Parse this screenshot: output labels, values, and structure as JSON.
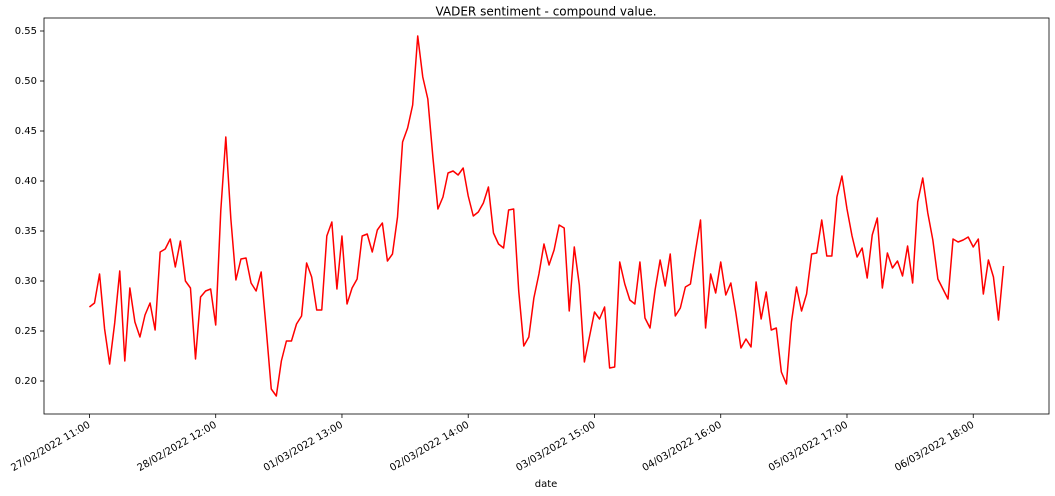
{
  "chart_data": {
    "type": "line",
    "title": "VADER sentiment - compound value.",
    "x_label": "date",
    "x": [
      "27/02/2022 11:00",
      "27/02/2022 12:00",
      "27/02/2022 13:00",
      "27/02/2022 14:00",
      "27/02/2022 15:00",
      "27/02/2022 16:00",
      "27/02/2022 17:00",
      "27/02/2022 18:00",
      "27/02/2022 19:00",
      "27/02/2022 20:00",
      "27/02/2022 21:00",
      "27/02/2022 22:00",
      "27/02/2022 23:00",
      "28/02/2022 00:00",
      "28/02/2022 01:00",
      "28/02/2022 02:00",
      "28/02/2022 03:00",
      "28/02/2022 04:00",
      "28/02/2022 05:00",
      "28/02/2022 06:00",
      "28/02/2022 07:00",
      "28/02/2022 08:00",
      "28/02/2022 09:00",
      "28/02/2022 10:00",
      "28/02/2022 11:00",
      "28/02/2022 12:00",
      "28/02/2022 13:00",
      "28/02/2022 14:00",
      "28/02/2022 15:00",
      "28/02/2022 16:00",
      "28/02/2022 17:00",
      "28/02/2022 18:00",
      "28/02/2022 19:00",
      "28/02/2022 20:00",
      "28/02/2022 21:00",
      "28/02/2022 22:00",
      "28/02/2022 23:00",
      "01/03/2022 00:00",
      "01/03/2022 01:00",
      "01/03/2022 02:00",
      "01/03/2022 03:00",
      "01/03/2022 04:00",
      "01/03/2022 05:00",
      "01/03/2022 06:00",
      "01/03/2022 07:00",
      "01/03/2022 08:00",
      "01/03/2022 09:00",
      "01/03/2022 10:00",
      "01/03/2022 11:00",
      "01/03/2022 12:00",
      "01/03/2022 13:00",
      "01/03/2022 14:00",
      "01/03/2022 15:00",
      "01/03/2022 16:00",
      "01/03/2022 17:00",
      "01/03/2022 18:00",
      "01/03/2022 19:00",
      "01/03/2022 20:00",
      "01/03/2022 21:00",
      "01/03/2022 22:00",
      "01/03/2022 23:00",
      "02/03/2022 00:00",
      "02/03/2022 01:00",
      "02/03/2022 02:00",
      "02/03/2022 03:00",
      "02/03/2022 04:00",
      "02/03/2022 05:00",
      "02/03/2022 06:00",
      "02/03/2022 07:00",
      "02/03/2022 08:00",
      "02/03/2022 09:00",
      "02/03/2022 10:00",
      "02/03/2022 11:00",
      "02/03/2022 12:00",
      "02/03/2022 13:00",
      "02/03/2022 14:00",
      "02/03/2022 15:00",
      "02/03/2022 16:00",
      "02/03/2022 17:00",
      "02/03/2022 18:00",
      "02/03/2022 19:00",
      "02/03/2022 20:00",
      "02/03/2022 21:00",
      "02/03/2022 22:00",
      "02/03/2022 23:00",
      "03/03/2022 00:00",
      "03/03/2022 01:00",
      "03/03/2022 02:00",
      "03/03/2022 03:00",
      "03/03/2022 04:00",
      "03/03/2022 05:00",
      "03/03/2022 06:00",
      "03/03/2022 07:00",
      "03/03/2022 08:00",
      "03/03/2022 09:00",
      "03/03/2022 10:00",
      "03/03/2022 11:00",
      "03/03/2022 12:00",
      "03/03/2022 13:00",
      "03/03/2022 14:00",
      "03/03/2022 15:00",
      "03/03/2022 16:00",
      "03/03/2022 17:00",
      "03/03/2022 18:00",
      "03/03/2022 19:00",
      "03/03/2022 20:00",
      "03/03/2022 21:00",
      "03/03/2022 22:00",
      "03/03/2022 23:00",
      "04/03/2022 00:00",
      "04/03/2022 01:00",
      "04/03/2022 02:00",
      "04/03/2022 03:00",
      "04/03/2022 04:00",
      "04/03/2022 05:00",
      "04/03/2022 06:00",
      "04/03/2022 07:00",
      "04/03/2022 08:00",
      "04/03/2022 09:00",
      "04/03/2022 10:00",
      "04/03/2022 11:00",
      "04/03/2022 12:00",
      "04/03/2022 13:00",
      "04/03/2022 14:00",
      "04/03/2022 15:00",
      "04/03/2022 16:00",
      "04/03/2022 17:00",
      "04/03/2022 18:00",
      "04/03/2022 19:00",
      "04/03/2022 20:00",
      "04/03/2022 21:00",
      "04/03/2022 22:00",
      "04/03/2022 23:00",
      "05/03/2022 00:00",
      "05/03/2022 01:00",
      "05/03/2022 02:00",
      "05/03/2022 03:00",
      "05/03/2022 04:00",
      "05/03/2022 05:00",
      "05/03/2022 06:00",
      "05/03/2022 07:00",
      "05/03/2022 08:00",
      "05/03/2022 09:00",
      "05/03/2022 10:00",
      "05/03/2022 11:00",
      "05/03/2022 12:00",
      "05/03/2022 13:00",
      "05/03/2022 14:00",
      "05/03/2022 15:00",
      "05/03/2022 16:00",
      "05/03/2022 17:00",
      "05/03/2022 18:00",
      "05/03/2022 19:00",
      "05/03/2022 20:00",
      "05/03/2022 21:00",
      "05/03/2022 22:00",
      "05/03/2022 23:00",
      "06/03/2022 00:00",
      "06/03/2022 01:00",
      "06/03/2022 02:00",
      "06/03/2022 03:00",
      "06/03/2022 04:00",
      "06/03/2022 05:00",
      "06/03/2022 06:00",
      "06/03/2022 07:00",
      "06/03/2022 08:00",
      "06/03/2022 09:00",
      "06/03/2022 10:00",
      "06/03/2022 11:00",
      "06/03/2022 12:00",
      "06/03/2022 13:00",
      "06/03/2022 14:00",
      "06/03/2022 15:00",
      "06/03/2022 16:00",
      "06/03/2022 17:00",
      "06/03/2022 18:00",
      "06/03/2022 19:00",
      "06/03/2022 20:00",
      "06/03/2022 21:00",
      "06/03/2022 22:00",
      "06/03/2022 23:00",
      "07/03/2022 00:00"
    ],
    "values": [
      0.274,
      0.278,
      0.307,
      0.252,
      0.217,
      0.258,
      0.31,
      0.22,
      0.293,
      0.259,
      0.244,
      0.266,
      0.278,
      0.251,
      0.329,
      0.332,
      0.342,
      0.314,
      0.34,
      0.3,
      0.293,
      0.222,
      0.284,
      0.29,
      0.292,
      0.256,
      0.37,
      0.444,
      0.362,
      0.301,
      0.322,
      0.323,
      0.298,
      0.29,
      0.309,
      0.252,
      0.192,
      0.185,
      0.22,
      0.24,
      0.24,
      0.257,
      0.265,
      0.318,
      0.304,
      0.271,
      0.271,
      0.345,
      0.359,
      0.292,
      0.345,
      0.277,
      0.293,
      0.302,
      0.345,
      0.347,
      0.329,
      0.351,
      0.358,
      0.32,
      0.327,
      0.364,
      0.439,
      0.453,
      0.476,
      0.545,
      0.504,
      0.482,
      0.424,
      0.372,
      0.384,
      0.408,
      0.41,
      0.406,
      0.413,
      0.385,
      0.365,
      0.369,
      0.378,
      0.394,
      0.348,
      0.337,
      0.333,
      0.371,
      0.372,
      0.29,
      0.235,
      0.244,
      0.283,
      0.307,
      0.337,
      0.316,
      0.331,
      0.356,
      0.353,
      0.27,
      0.334,
      0.296,
      0.219,
      0.244,
      0.269,
      0.262,
      0.274,
      0.213,
      0.214,
      0.319,
      0.297,
      0.281,
      0.277,
      0.319,
      0.263,
      0.253,
      0.291,
      0.321,
      0.295,
      0.327,
      0.265,
      0.273,
      0.294,
      0.297,
      0.33,
      0.361,
      0.253,
      0.307,
      0.288,
      0.319,
      0.286,
      0.298,
      0.268,
      0.233,
      0.242,
      0.234,
      0.299,
      0.262,
      0.289,
      0.251,
      0.253,
      0.209,
      0.197,
      0.259,
      0.294,
      0.27,
      0.287,
      0.327,
      0.328,
      0.361,
      0.325,
      0.325,
      0.384,
      0.405,
      0.372,
      0.345,
      0.324,
      0.333,
      0.303,
      0.346,
      0.363,
      0.293,
      0.328,
      0.313,
      0.32,
      0.305,
      0.335,
      0.298,
      0.379,
      0.403,
      0.368,
      0.341,
      0.302,
      0.292,
      0.282,
      0.342,
      0.339,
      0.341,
      0.344,
      0.334,
      0.342,
      0.287,
      0.321,
      0.304,
      0.261,
      0.315
    ],
    "color": "#ff0000",
    "xlim": [
      "27/02/2022 02:00",
      "07/03/2022 09:00"
    ],
    "xticks": [
      "27/02/2022 11:00",
      "28/02/2022 12:00",
      "01/03/2022 13:00",
      "02/03/2022 14:00",
      "03/03/2022 15:00",
      "04/03/2022 16:00",
      "05/03/2022 17:00",
      "06/03/2022 18:00"
    ],
    "ylim": [
      0.167,
      0.563
    ],
    "yticks": [
      {
        "value": 0.2,
        "label": "0.20"
      },
      0.25,
      {
        "value": 0.3,
        "label": "0.30"
      },
      0.35,
      {
        "value": 0.4,
        "label": "0.40"
      },
      0.45,
      {
        "value": 0.5,
        "label": "0.50"
      },
      0.55
    ],
    "grid": false
  }
}
